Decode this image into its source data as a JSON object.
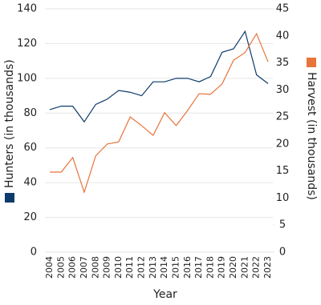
{
  "chart_data": {
    "type": "line",
    "x_label": "Year",
    "y_label": "Hunters (in thousands)",
    "y2_label": "Harvest (in thousands)",
    "categories": [
      "2004",
      "2005",
      "2006",
      "2007",
      "2008",
      "2009",
      "2010",
      "2011",
      "2012",
      "2013",
      "2014",
      "2015",
      "2016",
      "2017",
      "2018",
      "2019",
      "2020",
      "2021",
      "2022",
      "2023"
    ],
    "series": [
      {
        "name": "Hunters (in thousands)",
        "color": "#0d3b6b",
        "values": [
          82,
          84,
          84,
          75,
          85,
          88,
          93,
          92,
          90,
          98,
          98,
          100,
          100,
          98,
          101,
          115,
          117,
          127,
          102,
          97
        ]
      },
      {
        "name": "Harvest (in thousands)",
        "color": "#e8743b",
        "axis": "y2",
        "values": [
          14.8,
          14.8,
          17.5,
          11.1,
          17.8,
          20,
          20.4,
          25,
          23.4,
          21.6,
          25.8,
          23.4,
          26.2,
          29.3,
          29.2,
          31.1,
          35.5,
          36.9,
          40.4,
          35.2
        ]
      }
    ],
    "ylim": [
      0,
      140
    ],
    "yticks": [
      0,
      20,
      40,
      60,
      80,
      100,
      120,
      140
    ],
    "y2lim": [
      0,
      45
    ],
    "y2ticks": [
      0,
      5,
      10,
      15,
      20,
      25,
      30,
      35,
      40,
      45
    ],
    "grid": true
  }
}
